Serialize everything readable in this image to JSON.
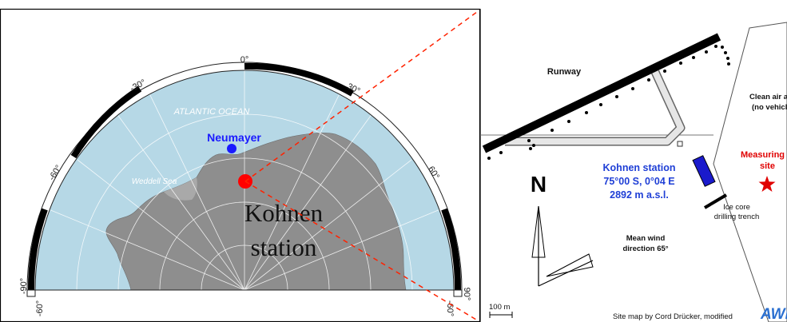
{
  "left_map": {
    "degree_labels": {
      "top": "0°",
      "left_upper": "-30°",
      "right_upper": "30°",
      "left_mid": "-60°",
      "right_mid": "60°",
      "left_bottom": "-90°",
      "right_bottom": "90°",
      "bottom_left": "-60°",
      "bottom_right": "-60°"
    },
    "ocean_label": "ATLANTIC OCEAN",
    "sea_label": "Weddell Sea",
    "neumayer_label": "Neumayer",
    "kohnen_label_line1": "Kohnen",
    "kohnen_label_line2": "station",
    "colors": {
      "ocean": "#b6d8e6",
      "land": "#8c8c8c",
      "neumayer": "#1a1aff",
      "kohnen": "#ff0000",
      "connector": "#ff2200"
    }
  },
  "site_map": {
    "runway_label": "Runway",
    "clean_air_line1": "Clean air area",
    "clean_air_line2": "(no vehicles)",
    "measuring_line1": "Measuring",
    "measuring_line2": "site",
    "north_label": "N",
    "station_line1": "Kohnen station",
    "station_line2": "75°00 S, 0°04 E",
    "station_line3": "2892 m a.s.l.",
    "wind_line1": "Mean wind",
    "wind_line2": "direction 65°",
    "ice_core_line1": "Ice core",
    "ice_core_line2": "drilling trench",
    "scale_label": "100 m",
    "credit": "Site map by Cord Drücker, modified",
    "logo_text": "AWI",
    "colors": {
      "station_text": "#1f3fd6",
      "measuring_text": "#e00000",
      "container": "#1a1acc"
    }
  }
}
